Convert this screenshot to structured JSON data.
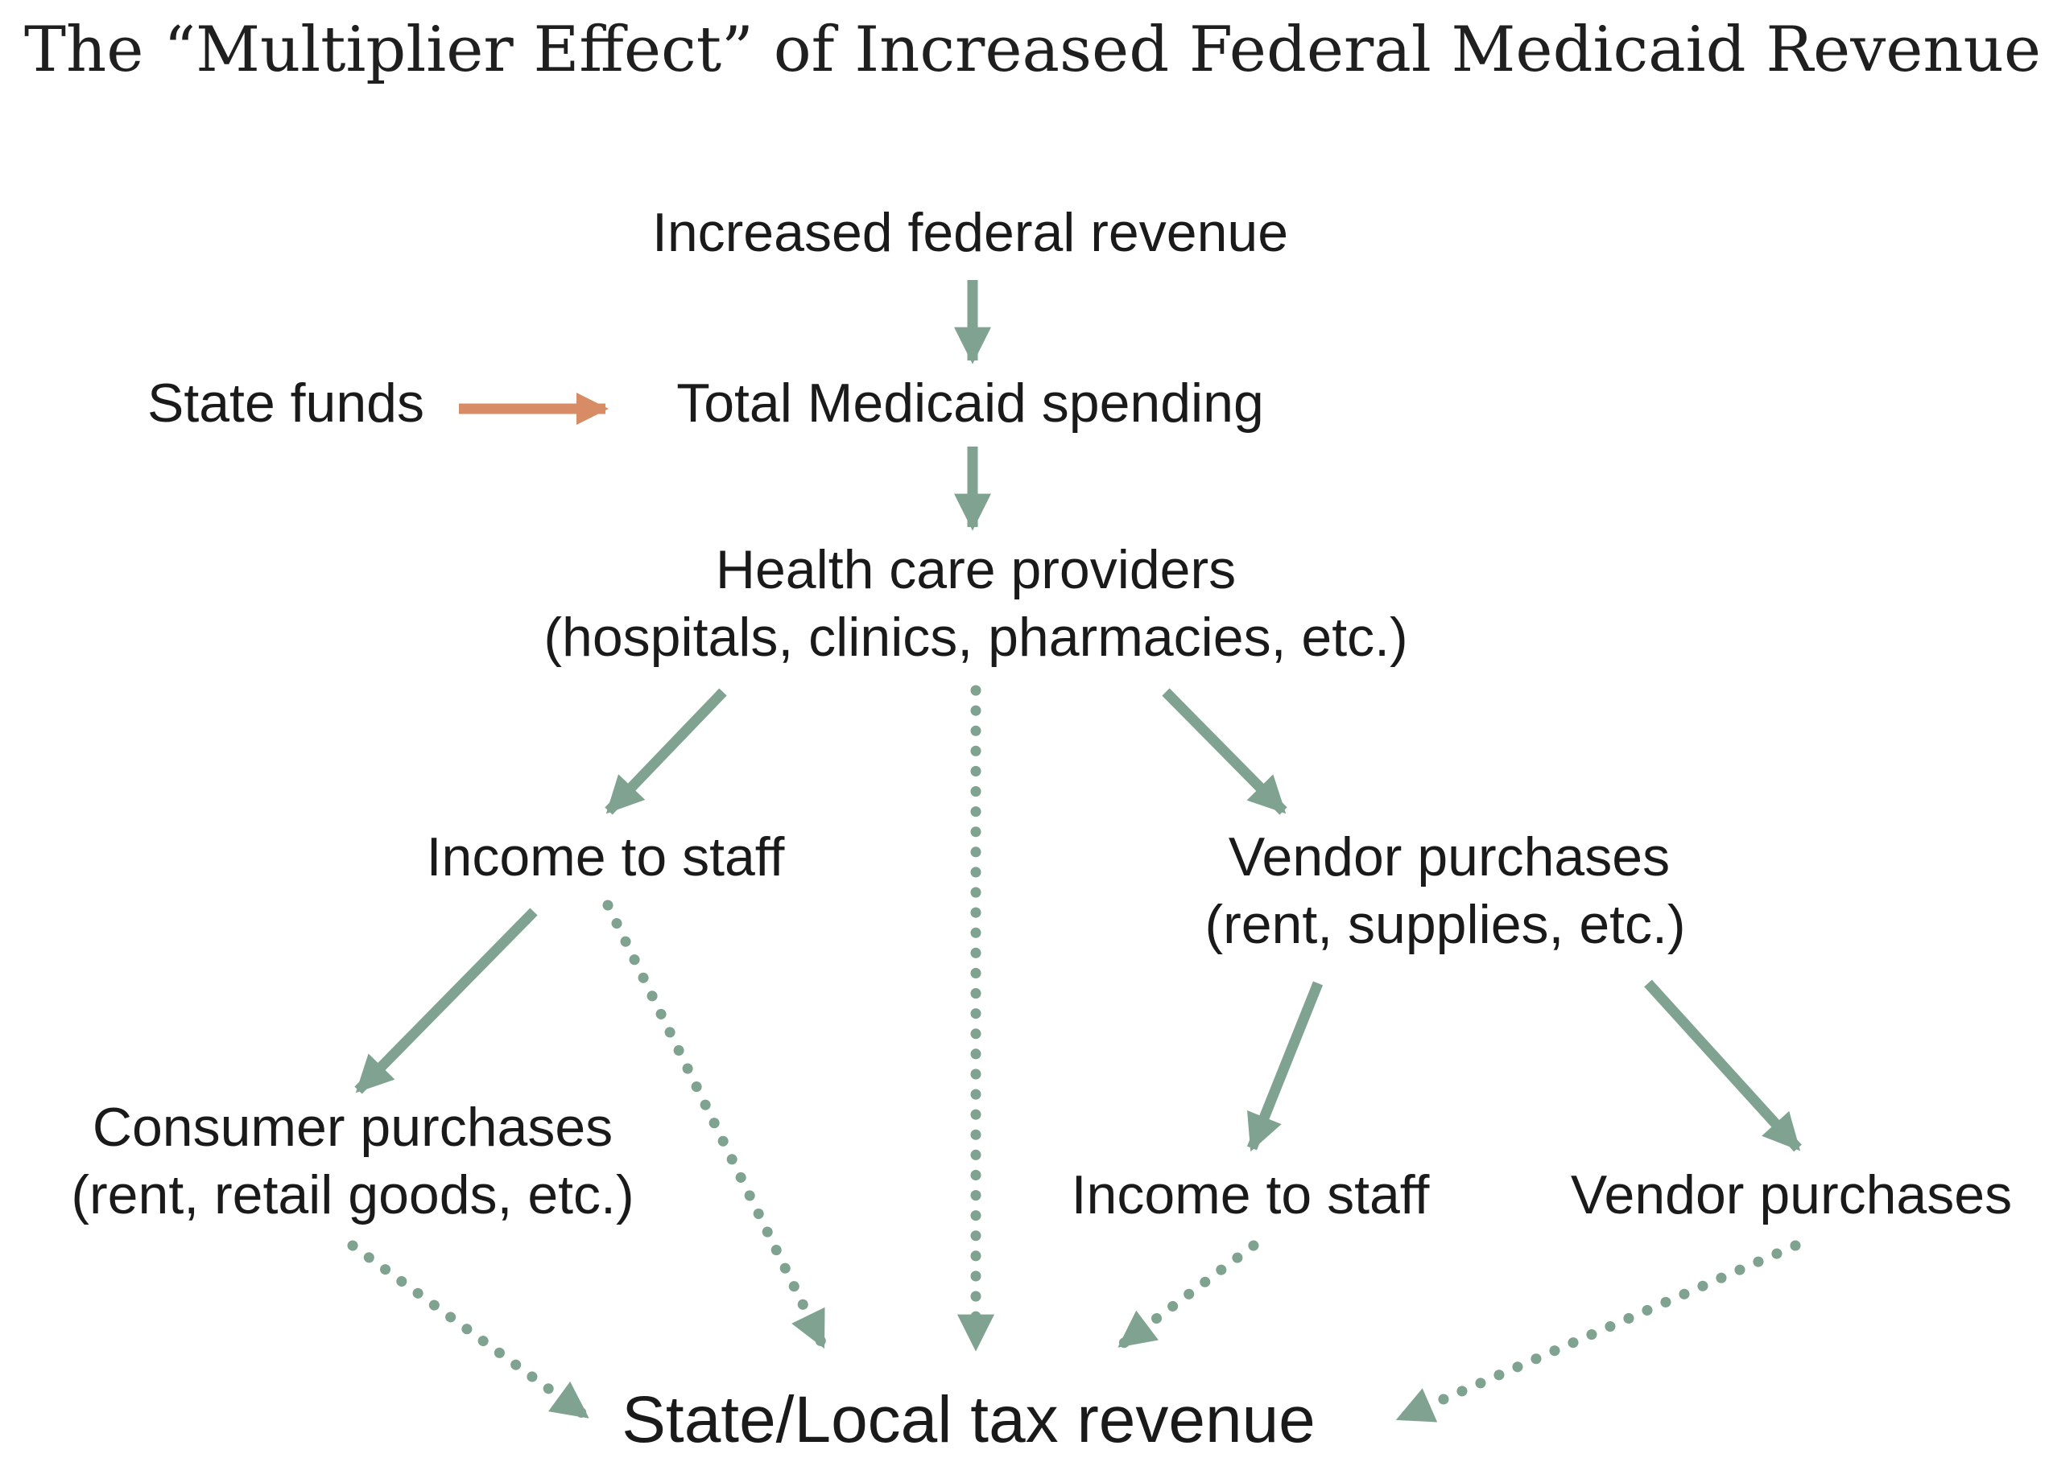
{
  "title": "The “Multiplier Effect” of Increased Federal Medicaid Revenue",
  "colors": {
    "flow_arrow": "#7fa390",
    "state_funds_arrow": "#d88c65",
    "text": "#1a1a1a"
  },
  "nodes": {
    "federal_revenue": "Increased federal revenue",
    "state_funds": "State funds",
    "total_medicaid": "Total Medicaid spending",
    "providers_line1": "Health care providers",
    "providers_line2": "(hospitals, clinics, pharmacies, etc.)",
    "income_staff_1": "Income to staff",
    "vendor_line1": "Vendor purchases",
    "vendor_line2": "(rent, supplies, etc.)",
    "consumer_line1": "Consumer purchases",
    "consumer_line2": "(rent, retail goods, etc.)",
    "income_staff_2": "Income to staff",
    "vendor_purchases_2": "Vendor purchases",
    "tax_revenue": "State/Local tax revenue"
  },
  "edges": [
    {
      "from": "Increased federal revenue",
      "to": "Total Medicaid spending",
      "style": "solid"
    },
    {
      "from": "State funds",
      "to": "Total Medicaid spending",
      "style": "solid"
    },
    {
      "from": "Total Medicaid spending",
      "to": "Health care providers",
      "style": "solid"
    },
    {
      "from": "Health care providers",
      "to": "Income to staff",
      "style": "solid"
    },
    {
      "from": "Health care providers",
      "to": "Vendor purchases",
      "style": "solid"
    },
    {
      "from": "Health care providers",
      "to": "State/Local tax revenue",
      "style": "dotted"
    },
    {
      "from": "Income to staff",
      "to": "Consumer purchases",
      "style": "solid"
    },
    {
      "from": "Income to staff",
      "to": "State/Local tax revenue",
      "style": "dotted"
    },
    {
      "from": "Vendor purchases",
      "to": "Income to staff (second tier)",
      "style": "solid"
    },
    {
      "from": "Vendor purchases",
      "to": "Vendor purchases (second tier)",
      "style": "solid"
    },
    {
      "from": "Consumer purchases",
      "to": "State/Local tax revenue",
      "style": "dotted"
    },
    {
      "from": "Income to staff (second tier)",
      "to": "State/Local tax revenue",
      "style": "dotted"
    },
    {
      "from": "Vendor purchases (second tier)",
      "to": "State/Local tax revenue",
      "style": "dotted"
    }
  ]
}
